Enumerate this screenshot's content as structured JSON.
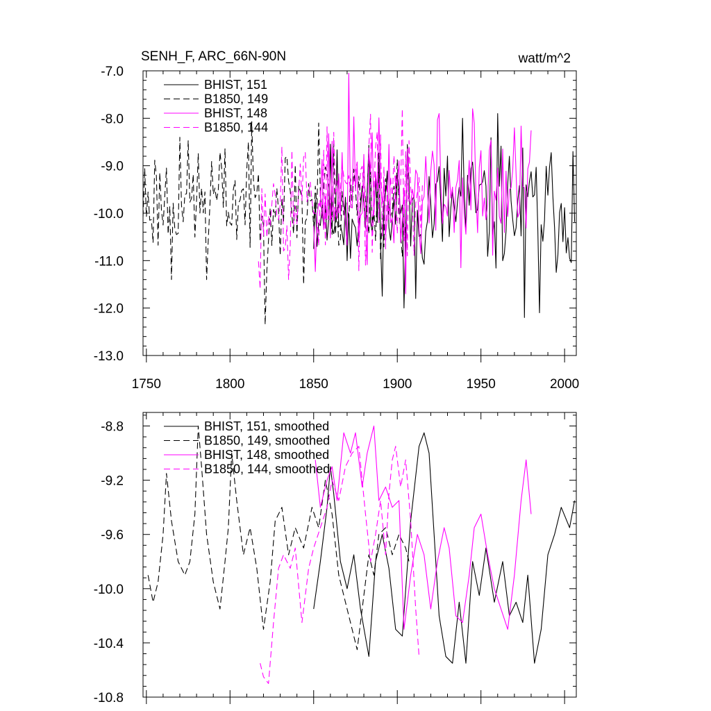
{
  "chart_data": [
    {
      "type": "line",
      "title_left": "SENH_F, ARC_66N-90N",
      "title_right": "watt/m^2",
      "xlabel": "",
      "ylabel": "",
      "xlim": [
        1748,
        2007
      ],
      "ylim": [
        -13.0,
        -7.0
      ],
      "yticks": [
        -7.0,
        -8.0,
        -9.0,
        -10.0,
        -11.0,
        -12.0,
        -13.0
      ],
      "ytick_labels": [
        "-7.0",
        "-8.0",
        "-9.0",
        "-10.0",
        "-11.0",
        "-12.0",
        "-13.0"
      ],
      "xticks": [
        1750,
        1800,
        1850,
        1900,
        1950,
        2000
      ],
      "xtick_labels": [
        "1750",
        "1800",
        "1850",
        "1900",
        "1950",
        "2000"
      ],
      "legend": [
        "BHIST, 151",
        "B1850, 149",
        "BHIST, 148",
        "B1850, 144"
      ],
      "series": [
        {
          "name": "BHIST, 151",
          "color": "#000000",
          "dash": "solid",
          "start": 1850,
          "amp": 0.75,
          "mean": -9.9,
          "seed": 11,
          "keys": [
            [
              1870,
              -11.0
            ],
            [
              1904,
              -12.0
            ],
            [
              1911,
              -11.8
            ],
            [
              1939,
              -8.0
            ],
            [
              1960,
              -7.9
            ],
            [
              1976,
              -12.2
            ],
            [
              1985,
              -12.1
            ],
            [
              2005,
              -8.7
            ]
          ]
        },
        {
          "name": "B1850, 149",
          "color": "#000000",
          "dash": "dashed",
          "start": 1748,
          "end": 1907,
          "amp": 0.65,
          "mean": -9.7,
          "seed": 23,
          "keys": [
            [
              1765,
              -11.4
            ],
            [
              1770,
              -8.4
            ],
            [
              1786,
              -11.4
            ],
            [
              1811,
              -8.5
            ],
            [
              1821,
              -12.35
            ],
            [
              1844,
              -11.5
            ],
            [
              1853,
              -8.1
            ]
          ]
        },
        {
          "name": "BHIST, 148",
          "color": "#ff00ff",
          "dash": "solid",
          "start": 1850,
          "end": 1980,
          "amp": 0.8,
          "mean": -9.6,
          "seed": 37,
          "keys": [
            [
              1871,
              -7.05
            ],
            [
              1905,
              -11.7
            ],
            [
              1925,
              -7.9
            ],
            [
              1945,
              -7.8
            ],
            [
              1970,
              -8.2
            ]
          ]
        },
        {
          "name": "B1850, 144",
          "color": "#ff00ff",
          "dash": "dashed",
          "start": 1817,
          "end": 1915,
          "amp": 0.75,
          "mean": -9.6,
          "seed": 53,
          "keys": [
            [
              1818,
              -11.6
            ],
            [
              1831,
              -8.6
            ],
            [
              1835,
              -11.4
            ],
            [
              1903,
              -7.8
            ],
            [
              1906,
              -10.9
            ]
          ]
        }
      ]
    },
    {
      "type": "line",
      "xlim": [
        1748,
        2007
      ],
      "ylim": [
        -10.8,
        -8.7
      ],
      "yticks": [
        -8.8,
        -9.2,
        -9.6,
        -10.0,
        -10.4,
        -10.8
      ],
      "ytick_labels": [
        "-8.8",
        "-9.2",
        "-9.6",
        "-10.0",
        "-10.4",
        "-10.8"
      ],
      "xticks": [
        1750,
        1800,
        1850,
        1900,
        1950,
        2000
      ],
      "legend": [
        "BHIST, 151, smoothed",
        "B1850, 149, smoothed",
        "BHIST, 148, smoothed",
        "B1850, 144, smoothed"
      ],
      "series": [
        {
          "name": "BHIST, 151, smoothed",
          "color": "#000000",
          "dash": "solid",
          "points": [
            [
              1850,
              -10.15
            ],
            [
              1854,
              -9.8
            ],
            [
              1858,
              -9.4
            ],
            [
              1860,
              -9.1
            ],
            [
              1862,
              -9.3
            ],
            [
              1866,
              -9.8
            ],
            [
              1870,
              -10.0
            ],
            [
              1874,
              -9.75
            ],
            [
              1878,
              -10.15
            ],
            [
              1883,
              -10.5
            ],
            [
              1887,
              -9.8
            ],
            [
              1891,
              -9.6
            ],
            [
              1895,
              -9.85
            ],
            [
              1899,
              -10.3
            ],
            [
              1903,
              -10.35
            ],
            [
              1908,
              -9.5
            ],
            [
              1913,
              -8.95
            ],
            [
              1916,
              -8.85
            ],
            [
              1919,
              -9.0
            ],
            [
              1922,
              -9.6
            ],
            [
              1925,
              -10.2
            ],
            [
              1929,
              -10.5
            ],
            [
              1933,
              -10.55
            ],
            [
              1937,
              -10.1
            ],
            [
              1941,
              -10.55
            ],
            [
              1945,
              -9.8
            ],
            [
              1949,
              -10.05
            ],
            [
              1953,
              -9.7
            ],
            [
              1958,
              -10.1
            ],
            [
              1963,
              -9.8
            ],
            [
              1967,
              -10.2
            ],
            [
              1971,
              -10.1
            ],
            [
              1975,
              -10.25
            ],
            [
              1978,
              -9.9
            ],
            [
              1982,
              -10.55
            ],
            [
              1986,
              -10.3
            ],
            [
              1990,
              -9.75
            ],
            [
              1994,
              -9.6
            ],
            [
              1998,
              -9.4
            ],
            [
              2003,
              -9.55
            ],
            [
              2006,
              -9.35
            ]
          ]
        },
        {
          "name": "B1850, 149, smoothed",
          "color": "#000000",
          "dash": "dashed",
          "points": [
            [
              1751,
              -9.9
            ],
            [
              1754,
              -10.1
            ],
            [
              1757,
              -9.95
            ],
            [
              1760,
              -9.6
            ],
            [
              1762,
              -9.15
            ],
            [
              1765,
              -9.5
            ],
            [
              1769,
              -9.8
            ],
            [
              1773,
              -9.9
            ],
            [
              1776,
              -9.8
            ],
            [
              1779,
              -9.45
            ],
            [
              1781,
              -8.8
            ],
            [
              1783,
              -9.1
            ],
            [
              1786,
              -9.6
            ],
            [
              1790,
              -9.95
            ],
            [
              1794,
              -10.15
            ],
            [
              1797,
              -9.8
            ],
            [
              1799,
              -9.55
            ],
            [
              1801,
              -9.0
            ],
            [
              1804,
              -9.35
            ],
            [
              1808,
              -9.75
            ],
            [
              1812,
              -9.55
            ],
            [
              1816,
              -9.85
            ],
            [
              1820,
              -10.3
            ],
            [
              1824,
              -9.95
            ],
            [
              1827,
              -9.5
            ],
            [
              1831,
              -9.4
            ],
            [
              1835,
              -9.75
            ],
            [
              1839,
              -9.55
            ],
            [
              1844,
              -9.7
            ],
            [
              1849,
              -9.4
            ],
            [
              1853,
              -9.55
            ],
            [
              1857,
              -9.2
            ],
            [
              1861,
              -9.45
            ],
            [
              1865,
              -9.9
            ],
            [
              1869,
              -10.1
            ],
            [
              1873,
              -10.3
            ],
            [
              1876,
              -10.45
            ],
            [
              1880,
              -10.05
            ],
            [
              1883,
              -9.75
            ],
            [
              1886,
              -9.9
            ],
            [
              1889,
              -9.6
            ],
            [
              1893,
              -9.55
            ],
            [
              1897,
              -9.75
            ],
            [
              1901,
              -9.6
            ],
            [
              1905,
              -9.7
            ],
            [
              1907,
              -9.8
            ]
          ]
        },
        {
          "name": "BHIST, 148, smoothed",
          "color": "#ff00ff",
          "dash": "solid",
          "points": [
            [
              1851,
              -9.05
            ],
            [
              1854,
              -9.4
            ],
            [
              1858,
              -9.2
            ],
            [
              1861,
              -9.1
            ],
            [
              1864,
              -9.35
            ],
            [
              1868,
              -8.85
            ],
            [
              1872,
              -9.0
            ],
            [
              1875,
              -8.85
            ],
            [
              1879,
              -9.25
            ],
            [
              1882,
              -9.0
            ],
            [
              1886,
              -8.8
            ],
            [
              1889,
              -9.35
            ],
            [
              1893,
              -9.25
            ],
            [
              1897,
              -9.4
            ],
            [
              1901,
              -9.35
            ],
            [
              1904,
              -10.3
            ],
            [
              1908,
              -9.9
            ],
            [
              1912,
              -9.6
            ],
            [
              1916,
              -9.75
            ],
            [
              1920,
              -10.15
            ],
            [
              1924,
              -9.8
            ],
            [
              1928,
              -9.55
            ],
            [
              1931,
              -9.7
            ],
            [
              1935,
              -10.2
            ],
            [
              1939,
              -10.25
            ],
            [
              1943,
              -9.9
            ],
            [
              1946,
              -9.55
            ],
            [
              1950,
              -9.45
            ],
            [
              1954,
              -9.75
            ],
            [
              1958,
              -10.0
            ],
            [
              1962,
              -10.15
            ],
            [
              1966,
              -10.3
            ],
            [
              1970,
              -9.9
            ],
            [
              1974,
              -9.35
            ],
            [
              1977,
              -9.05
            ],
            [
              1980,
              -9.45
            ]
          ]
        },
        {
          "name": "B1850, 144, smoothed",
          "color": "#ff00ff",
          "dash": "dashed",
          "points": [
            [
              1818,
              -10.55
            ],
            [
              1820,
              -10.65
            ],
            [
              1823,
              -10.7
            ],
            [
              1826,
              -10.25
            ],
            [
              1829,
              -9.85
            ],
            [
              1832,
              -9.75
            ],
            [
              1836,
              -9.85
            ],
            [
              1839,
              -9.7
            ],
            [
              1843,
              -10.25
            ],
            [
              1847,
              -9.85
            ],
            [
              1850,
              -9.7
            ],
            [
              1854,
              -9.55
            ],
            [
              1858,
              -9.4
            ],
            [
              1861,
              -9.2
            ],
            [
              1865,
              -9.35
            ],
            [
              1869,
              -9.1
            ],
            [
              1873,
              -9.0
            ],
            [
              1877,
              -8.95
            ],
            [
              1881,
              -9.45
            ],
            [
              1884,
              -9.8
            ],
            [
              1887,
              -9.6
            ],
            [
              1890,
              -9.35
            ],
            [
              1893,
              -9.75
            ],
            [
              1895,
              -9.3
            ],
            [
              1897,
              -9.05
            ],
            [
              1899,
              -8.95
            ],
            [
              1902,
              -9.25
            ],
            [
              1905,
              -9.05
            ],
            [
              1908,
              -9.5
            ],
            [
              1911,
              -10.15
            ],
            [
              1913,
              -10.5
            ]
          ]
        }
      ]
    }
  ]
}
